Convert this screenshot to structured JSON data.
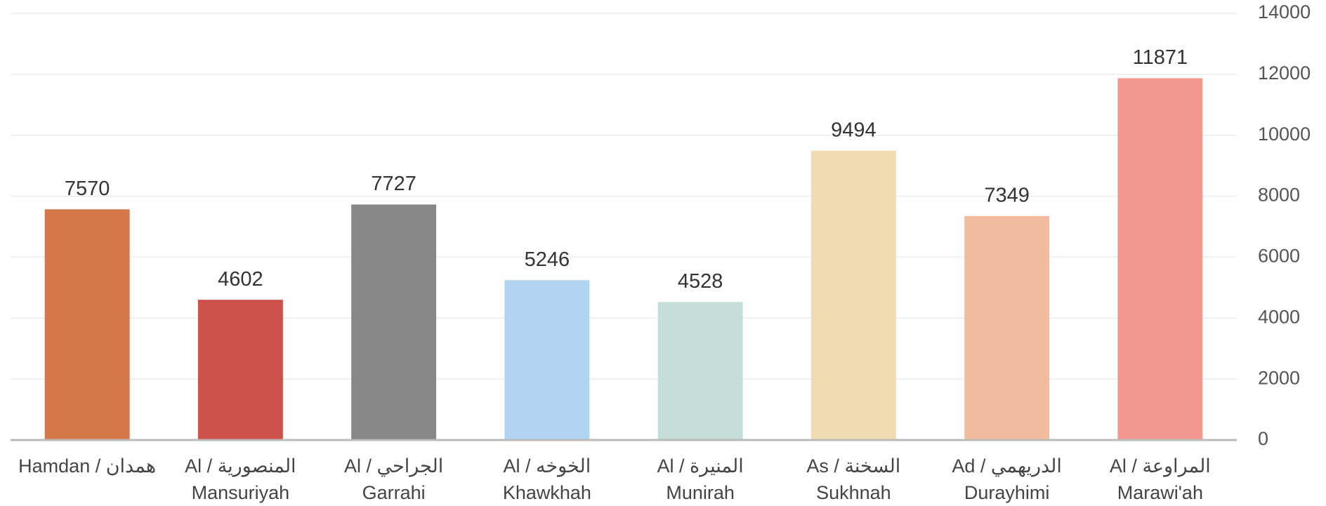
{
  "chart_data": {
    "type": "bar",
    "categories": [
      [
        "Hamdan / همدان"
      ],
      [
        "Al / المنصورية",
        "Mansuriyah"
      ],
      [
        "Al / الجراحي",
        "Garrahi"
      ],
      [
        "Al / الخوخه",
        "Khawkhah"
      ],
      [
        "Al / المنيرة",
        "Munirah"
      ],
      [
        "As / السخنة",
        "Sukhnah"
      ],
      [
        "Ad / الدريهمي",
        "Durayhimi"
      ],
      [
        "Al / المراوعة",
        "Marawi'ah"
      ]
    ],
    "values": [
      7570,
      4602,
      7727,
      5246,
      4528,
      9494,
      7349,
      11871
    ],
    "colors": [
      "#d4784a",
      "#cc5249",
      "#878787",
      "#b0d4f2",
      "#c4ddd6",
      "#f0dcb3",
      "#f2bb9f",
      "#f29891"
    ],
    "ylim": [
      0,
      14000
    ],
    "yticks": [
      0,
      2000,
      4000,
      6000,
      8000,
      10000,
      12000,
      14000
    ],
    "grid": true,
    "y_axis_side": "right"
  }
}
